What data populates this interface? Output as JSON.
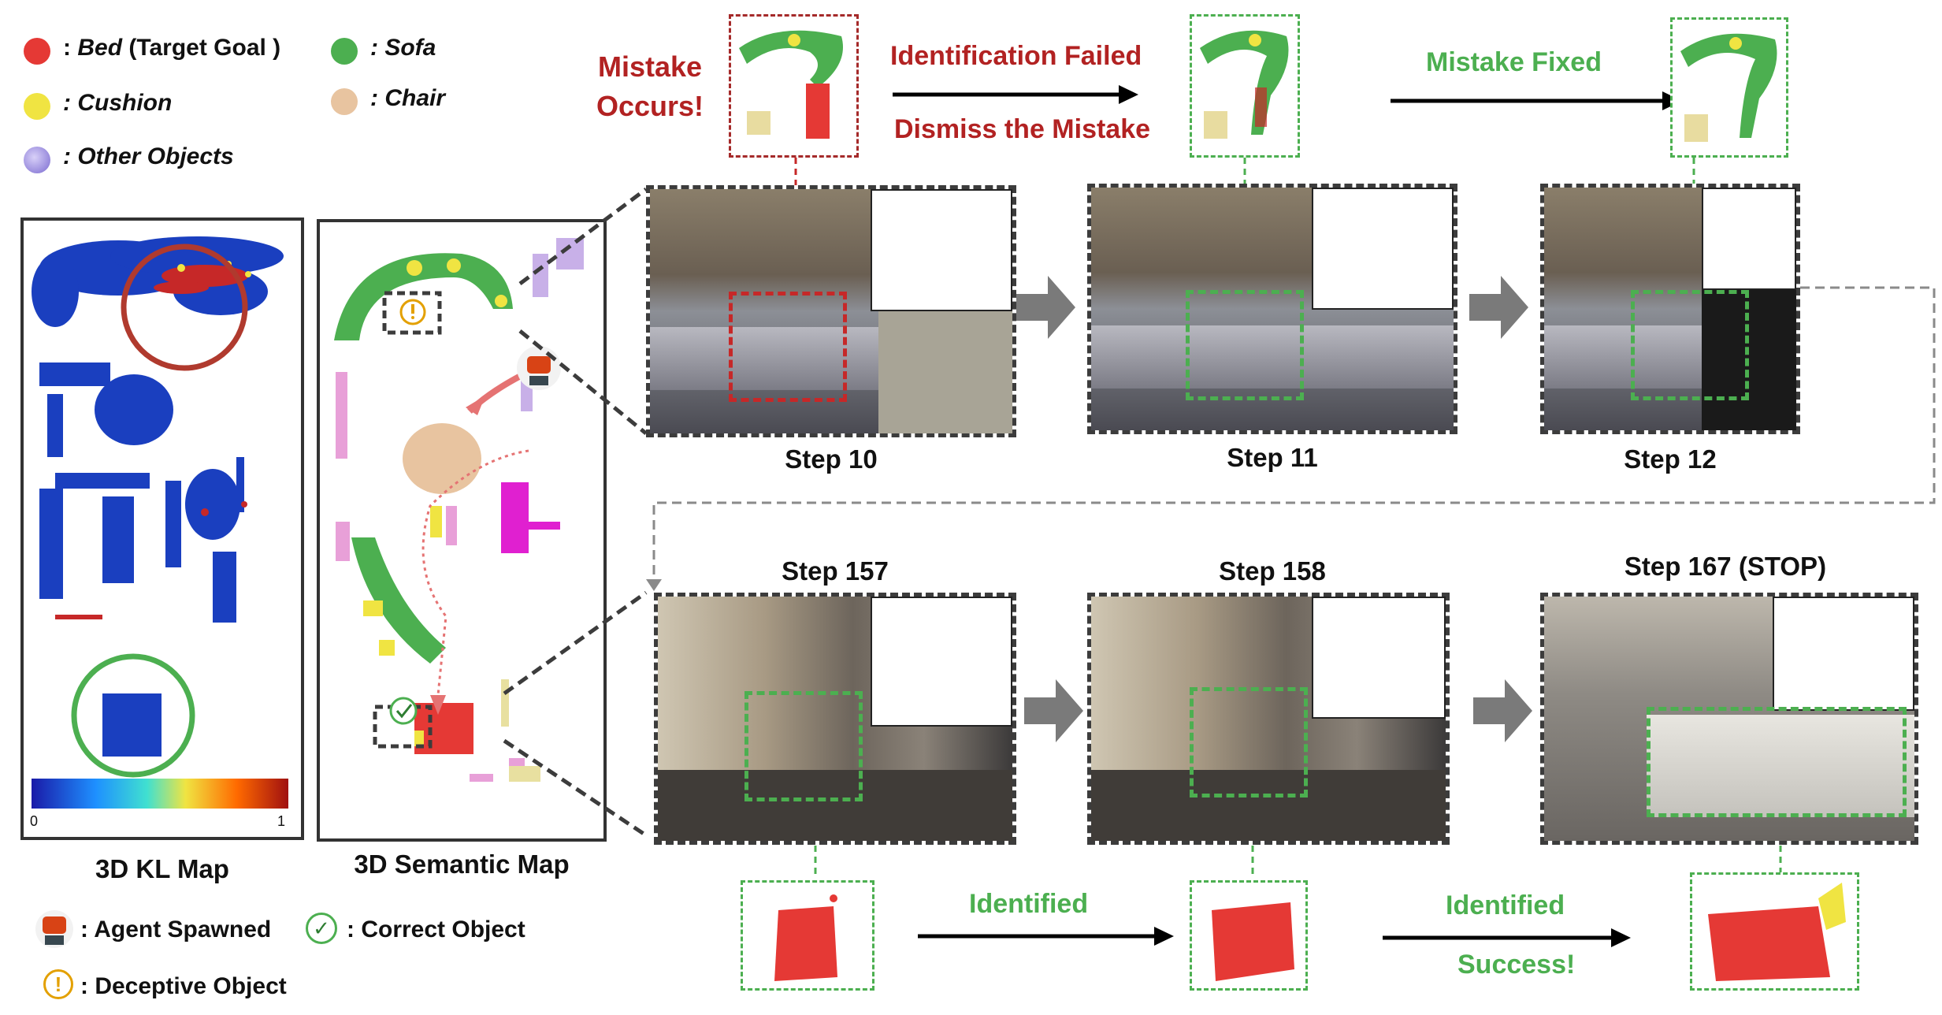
{
  "legend": {
    "bed": "Bed",
    "bed_paren": "(Target Goal )",
    "sofa": ": Sofa",
    "cushion": ": Cushion",
    "chair": ": Chair",
    "other": ": Other Objects",
    "colon": ":",
    "colors": {
      "bed": "#e53935",
      "sofa": "#4caf50",
      "cushion": "#f0e442",
      "chair": "#e8c4a0",
      "other": "#9b8fd8"
    }
  },
  "panels": {
    "kl_map_title": "3D KL Map",
    "colorbar_min": "0",
    "colorbar_max": "1",
    "semantic_map_title": "3D Semantic Map"
  },
  "bottom_legend": {
    "agent": ": Agent Spawned",
    "correct": ": Correct Object",
    "deceptive": ": Deceptive Object"
  },
  "top_row": {
    "mistake_occurs": "Mistake Occurs!",
    "identification_failed": "Identification Failed",
    "dismiss_mistake": "Dismiss the Mistake",
    "mistake_fixed": "Mistake Fixed",
    "steps": [
      "Step 10",
      "Step 11",
      "Step 12"
    ]
  },
  "bottom_row": {
    "steps": [
      "Step 157",
      "Step 158",
      "Step 167 (STOP)"
    ],
    "identified_1": "Identified",
    "identified_2": "Identified",
    "success": "Success!"
  }
}
